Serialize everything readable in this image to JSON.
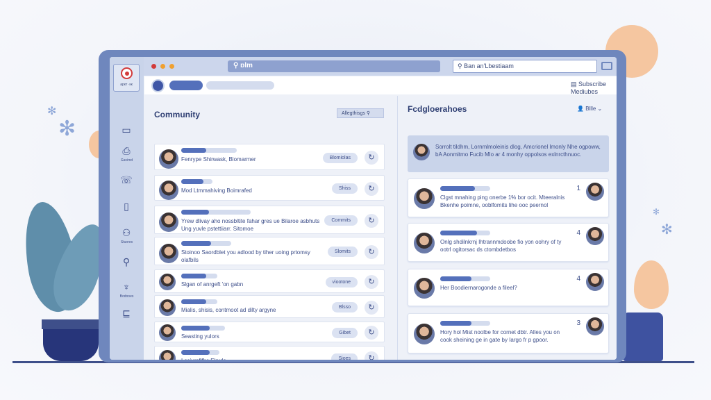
{
  "colors": {
    "frame": "#6f87bd",
    "accent": "#5470bb",
    "panel": "#c9d4ea"
  },
  "window": {
    "address": "ɒlm",
    "search_placeholder": "Ban an'Lbestiaam",
    "header_link": "Subscribe Mediubes"
  },
  "sidebar": {
    "logo_text": "аркт ·кк",
    "items": [
      {
        "icon": "inbox-icon",
        "label": ""
      },
      {
        "icon": "badge-icon",
        "label": "Gavimd"
      },
      {
        "icon": "chat-icon",
        "label": ""
      },
      {
        "icon": "clipboard-icon",
        "label": ""
      },
      {
        "icon": "stamp-icon",
        "label": "Stuores"
      },
      {
        "icon": "search-person-icon",
        "label": ""
      },
      {
        "icon": "trophy-icon",
        "label": "Bodooes"
      },
      {
        "icon": "layout-icon",
        "label": ""
      }
    ]
  },
  "community": {
    "title": "Community",
    "action": "Allegthisgs",
    "rows": [
      {
        "text": "Fenrype Shirwask, Blomarmer",
        "tag": "Blomiolas",
        "fill": 45,
        "barw": 80
      },
      {
        "text": "Mod Ltmmahiving Boimrafed",
        "tag": "Shiss",
        "fill": 70,
        "barw": 45
      },
      {
        "text": "Yrew dlivay aho nossbltite fahar gres ue Bilaroe asbhuts Ung yuvle pstettiiarr. Sitomoe",
        "tag": "Commits",
        "fill": 40,
        "barw": 100
      },
      {
        "text": "Stoinoo Saordblet you adlood by tiher uoing prtomsy olafbils",
        "tag": "Slomits",
        "fill": 60,
        "barw": 72
      },
      {
        "text": "Slgan of anrgeft 'on gabn",
        "tag": "viootone",
        "fill": 70,
        "barw": 52
      },
      {
        "text": "Mialis, shisis, contmoot ad dilty argyne",
        "tag": "Blsso",
        "fill": 70,
        "barw": 52
      },
      {
        "text": "Seasting yulors",
        "tag": "Gibet",
        "fill": 65,
        "barw": 63
      },
      {
        "text": "Lssivrnflfhc Elryds",
        "tag": "Sjoes",
        "fill": 75,
        "barw": 55
      }
    ]
  },
  "discussions": {
    "title": "Fcdgloerahoes",
    "filter": "Bllle",
    "summary": "Sorrolt tildhm, Lornmlmoleinis dlog, Amcrionel lmonly Nhe ogpoww, bA Aonmitmo Fucib Mlo ar  4 monhy oppolsos exlnrcthnuoc.",
    "cards": [
      {
        "count": "1",
        "text": "Clgst mnahing ping onerbe 1% bor ocit. Mteeralnis Bkenhe poimne, ooblfomits lihe ooc peernol",
        "fill": 70
      },
      {
        "count": "4",
        "text": "Onlg shdilnkrnj Ihtrannmdoobe fio yon oohry of ty ootrl ogitorsac ds ctombdetbos",
        "fill": 73
      },
      {
        "count": "4",
        "text": "Her Boodiernarogonde a fileel?",
        "fill": 63
      },
      {
        "count": "3",
        "text": "Hory hol Mist noolbe for cornet dbtr. Alles you on cook sheining ge in gate by Iargo fr p gpoor.",
        "fill": 63
      }
    ]
  }
}
